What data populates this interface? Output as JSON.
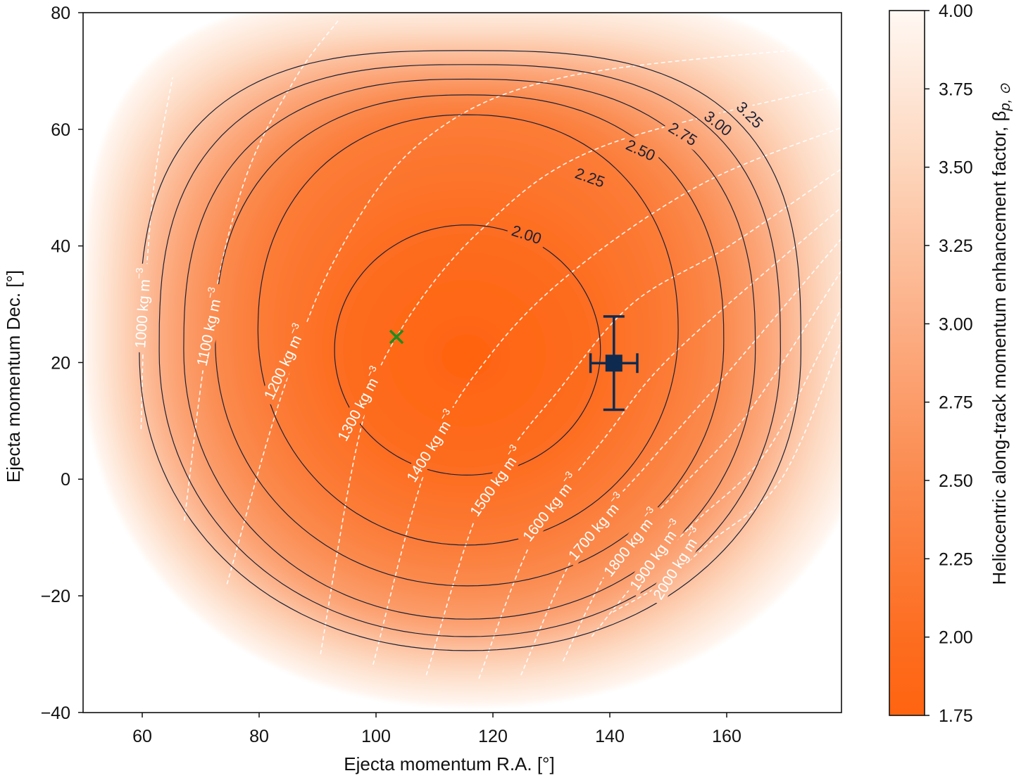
{
  "chart_data": {
    "type": "heatmap",
    "xlabel": "Ejecta momentum R.A. [°]",
    "ylabel": "Ejecta momentum Dec. [°]",
    "xlim": [
      50,
      179.7
    ],
    "ylim": [
      -40,
      80
    ],
    "xticks": [
      60,
      80,
      100,
      120,
      140,
      160
    ],
    "xtick_labels": [
      "60",
      "80",
      "100",
      "120",
      "140",
      "160"
    ],
    "yticks": [
      -40,
      -20,
      0,
      20,
      40,
      60,
      80
    ],
    "ytick_labels": [
      "−40",
      "−20",
      "0",
      "20",
      "40",
      "60",
      "80"
    ],
    "grid": false,
    "colorbar": {
      "label": "Heliocentric along-track momentum enhancement factor, ",
      "symbol": "β",
      "subscript": "p, ⊙",
      "range": [
        1.75,
        4.0
      ],
      "ticks": [
        1.75,
        2.0,
        2.25,
        2.5,
        2.75,
        3.0,
        3.25,
        3.5,
        3.75,
        4.0
      ],
      "tick_labels": [
        "1.75",
        "2.00",
        "2.25",
        "2.50",
        "2.75",
        "3.00",
        "3.25",
        "3.50",
        "3.75",
        "4.00"
      ],
      "colormap": [
        {
          "value": 1.75,
          "color": "#ff6410"
        },
        {
          "value": 2.0,
          "color": "#fd6d20"
        },
        {
          "value": 2.5,
          "color": "#fb8a4e"
        },
        {
          "value": 3.0,
          "color": "#fcae85"
        },
        {
          "value": 3.5,
          "color": "#fdd5bb"
        },
        {
          "value": 4.0,
          "color": "#fff8f3"
        }
      ]
    },
    "contours": [
      {
        "level": 2.0,
        "label": "2.00",
        "ra_range": [
          92.9,
          138.4
        ],
        "dec_range": [
          0.7,
          43.6
        ]
      },
      {
        "level": 2.25,
        "label": "2.25",
        "ra_range": [
          79.8,
          151.7
        ],
        "dec_range": [
          -11.3,
          62.5
        ]
      },
      {
        "level": 2.5,
        "label": "2.50",
        "ra_range": [
          72.5,
          159.5
        ],
        "dec_range": [
          -18.3,
          65.9
        ]
      },
      {
        "level": 2.75,
        "label": "2.75",
        "ra_range": [
          67.1,
          164.9
        ],
        "dec_range": [
          -24.0,
          68.6
        ]
      },
      {
        "level": 3.0,
        "label": "3.00",
        "ra_range": [
          62.9,
          169.2
        ],
        "dec_range": [
          -27.0,
          71.1
        ]
      },
      {
        "level": 3.25,
        "label": "3.25",
        "ra_range": [
          59.5,
          172.7
        ],
        "dec_range": [
          -29.4,
          73.5
        ]
      }
    ],
    "contour_color": "#1b2036",
    "density_lines": [
      {
        "label": "1000 kg m",
        "exponent": "−3",
        "points": [
          [
            59.8,
            8.6
          ],
          [
            60.5,
            31.5
          ],
          [
            62.2,
            52.0
          ],
          [
            65.2,
            68.9
          ]
        ]
      },
      {
        "label": "1100 kg m",
        "exponent": "−3",
        "points": [
          [
            67.2,
            -7.1
          ],
          [
            71.8,
            27.9
          ],
          [
            77.8,
            52.0
          ],
          [
            86.3,
            68.9
          ],
          [
            93.5,
            78.6
          ]
        ]
      },
      {
        "label": "1200 kg m",
        "exponent": "−3",
        "points": [
          [
            74.5,
            -18.0
          ],
          [
            83.9,
            14.6
          ],
          [
            93.5,
            38.7
          ],
          [
            108.0,
            58.0
          ],
          [
            132.0,
            68.9
          ],
          [
            179.6,
            74.3
          ]
        ]
      },
      {
        "label": "1300 kg m",
        "exponent": "−3",
        "points": [
          [
            90.5,
            -30.0
          ],
          [
            97.1,
            7.4
          ],
          [
            103.5,
            24.4
          ],
          [
            117.6,
            42.4
          ],
          [
            138.1,
            56.8
          ],
          [
            179.6,
            67.6
          ]
        ]
      },
      {
        "label": "1400 kg m",
        "exponent": "−3",
        "points": [
          [
            99.5,
            -31.8
          ],
          [
            109.2,
            3.8
          ],
          [
            120.0,
            21.9
          ],
          [
            134.5,
            36.3
          ],
          [
            156.1,
            50.8
          ],
          [
            179.6,
            60.3
          ]
        ]
      },
      {
        "label": "1500 kg m",
        "exponent": "−3",
        "points": [
          [
            108.6,
            -33.6
          ],
          [
            118.8,
            -2.3
          ],
          [
            132.0,
            16.2
          ],
          [
            144.1,
            30.3
          ],
          [
            160.1,
            39.8
          ],
          [
            179.6,
            53.2
          ]
        ]
      },
      {
        "label": "1600 kg m",
        "exponent": "−3",
        "points": [
          [
            117.6,
            -34.2
          ],
          [
            127.2,
            -9.5
          ],
          [
            139.6,
            7.7
          ],
          [
            151.3,
            21.9
          ],
          [
            179.6,
            46.6
          ]
        ]
      },
      {
        "label": "1700 kg m",
        "exponent": "−3",
        "points": [
          [
            124.8,
            -33.6
          ],
          [
            134.5,
            -11.9
          ],
          [
            146.5,
            2.6
          ],
          [
            158.6,
            16.4
          ],
          [
            179.6,
            41.2
          ]
        ]
      },
      {
        "label": "1800 kg m",
        "exponent": "−3",
        "points": [
          [
            132.0,
            -31.2
          ],
          [
            140.5,
            -14.3
          ],
          [
            151.3,
            -2.3
          ],
          [
            163.4,
            11.0
          ],
          [
            179.6,
            35.7
          ]
        ]
      },
      {
        "label": "1900 kg m",
        "exponent": "−3",
        "points": [
          [
            136.9,
            -27.0
          ],
          [
            145.3,
            -16.7
          ],
          [
            154.9,
            -7.1
          ],
          [
            167.0,
            5.0
          ],
          [
            179.6,
            29.3
          ]
        ]
      },
      {
        "label": "2000 kg m",
        "exponent": "−3",
        "points": [
          [
            140.5,
            -22.8
          ],
          [
            148.9,
            -17.9
          ],
          [
            157.3,
            -10.7
          ],
          [
            169.4,
            0.1
          ],
          [
            179.6,
            23.7
          ]
        ]
      }
    ],
    "measurement": {
      "ra": 140.7,
      "dec": 19.9,
      "ra_err": 4,
      "dec_err": 8,
      "color": "#0f2a4f"
    },
    "cross_marker": {
      "ra": 103.5,
      "dec": 24.4,
      "color": "#1f8c1f"
    }
  }
}
